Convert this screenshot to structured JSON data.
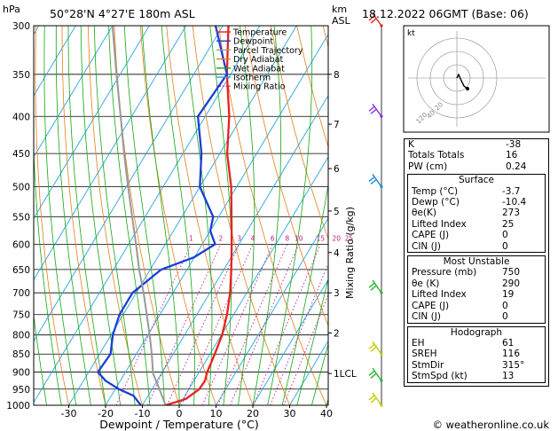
{
  "header": {
    "hpa_label": "hPa",
    "location": "50°28'N 4°27'E 180m ASL",
    "km_label": "km",
    "asl_label": "ASL",
    "datetime": "18.12.2022 06GMT (Base: 06)"
  },
  "chart_data": {
    "type": "skew-t",
    "xlabel": "Dewpoint / Temperature (°C)",
    "ylabel": "Mixing Ratio (g/kg)",
    "xlim": [
      -40,
      40
    ],
    "pressure_range": [
      1000,
      300
    ],
    "y_scale": "log",
    "x_ticks": [
      -30,
      -20,
      -10,
      0,
      10,
      20,
      30,
      40
    ],
    "pressure_ticks": [
      300,
      350,
      400,
      450,
      500,
      550,
      600,
      650,
      700,
      750,
      800,
      850,
      900,
      950,
      1000
    ],
    "height_ticks": [
      {
        "label": "8",
        "p": 350
      },
      {
        "label": "7",
        "p": 410
      },
      {
        "label": "6",
        "p": 472
      },
      {
        "label": "5",
        "p": 540
      },
      {
        "label": "4",
        "p": 616
      },
      {
        "label": "3",
        "p": 700
      },
      {
        "label": "2",
        "p": 795
      },
      {
        "label": "1LCL",
        "p": 904
      }
    ],
    "mixing_ratio_labels": [
      "1",
      "2",
      "3",
      "4",
      "6",
      "8",
      "10",
      "15",
      "20",
      "25"
    ],
    "legend_placement": "top-right",
    "legend": [
      {
        "label": "Temperature",
        "color": "#e8221e",
        "style": "solid"
      },
      {
        "label": "Dewpoint",
        "color": "#1a3fd6",
        "style": "solid"
      },
      {
        "label": "Parcel Trajectory",
        "color": "#999999",
        "style": "solid"
      },
      {
        "label": "Dry Adiabat",
        "color": "#e0801a",
        "style": "solid"
      },
      {
        "label": "Wet Adiabat",
        "color": "#12a612",
        "style": "solid"
      },
      {
        "label": "Isotherm",
        "color": "#22a6e0",
        "style": "solid"
      },
      {
        "label": "Mixing Ratio",
        "color": "#c0188e",
        "style": "dotted"
      }
    ],
    "series": [
      {
        "name": "Temperature",
        "color": "#e8221e",
        "points": [
          [
            1000,
            -3.7
          ],
          [
            980,
            0.8
          ],
          [
            950,
            2.8
          ],
          [
            925,
            3.0
          ],
          [
            900,
            2.2
          ],
          [
            850,
            1.3
          ],
          [
            800,
            0.2
          ],
          [
            750,
            -1.8
          ],
          [
            700,
            -4.5
          ],
          [
            650,
            -8.0
          ],
          [
            600,
            -12.0
          ],
          [
            550,
            -16.5
          ],
          [
            500,
            -21.5
          ],
          [
            450,
            -28.0
          ],
          [
            400,
            -33.5
          ],
          [
            350,
            -41.0
          ],
          [
            300,
            -48.5
          ]
        ]
      },
      {
        "name": "Dewpoint",
        "color": "#1a3fd6",
        "points": [
          [
            1000,
            -10.4
          ],
          [
            970,
            -14
          ],
          [
            950,
            -19
          ],
          [
            925,
            -24
          ],
          [
            900,
            -27.5
          ],
          [
            850,
            -27
          ],
          [
            800,
            -29.5
          ],
          [
            750,
            -31
          ],
          [
            700,
            -31
          ],
          [
            650,
            -27
          ],
          [
            625,
            -20
          ],
          [
            600,
            -16.5
          ],
          [
            575,
            -20
          ],
          [
            550,
            -21.5
          ],
          [
            500,
            -30
          ],
          [
            450,
            -35
          ],
          [
            400,
            -42
          ],
          [
            350,
            -41
          ],
          [
            300,
            -52
          ]
        ]
      },
      {
        "name": "Parcel Trajectory",
        "color": "#999999",
        "points": [
          [
            1000,
            -3.7
          ],
          [
            950,
            -8.0
          ],
          [
            904,
            -12.3
          ],
          [
            850,
            -15.8
          ],
          [
            800,
            -19.5
          ],
          [
            750,
            -23.6
          ],
          [
            700,
            -28.0
          ],
          [
            650,
            -33.0
          ],
          [
            600,
            -38.0
          ],
          [
            550,
            -43.5
          ],
          [
            500,
            -49.5
          ],
          [
            450,
            -56.0
          ],
          [
            400,
            -63.0
          ],
          [
            350,
            -71.0
          ],
          [
            300,
            -80.0
          ]
        ]
      }
    ],
    "wind_barbs": [
      {
        "p": 300,
        "color": "#e02020"
      },
      {
        "p": 400,
        "color": "#8a2be2"
      },
      {
        "p": 500,
        "color": "#1a8fd6"
      },
      {
        "p": 700,
        "color": "#2eb82e"
      },
      {
        "p": 850,
        "color": "#c8c800"
      },
      {
        "p": 925,
        "color": "#2eb82e"
      },
      {
        "p": 1000,
        "color": "#c8c800"
      }
    ]
  },
  "hodograph": {
    "unit_label": "kt",
    "ring_labels": [
      "20",
      "40"
    ],
    "label_120": "120"
  },
  "indices": {
    "rows": [
      {
        "label": "K",
        "value": "-38"
      },
      {
        "label": "Totals Totals",
        "value": "16"
      },
      {
        "label": "PW (cm)",
        "value": "0.24"
      }
    ]
  },
  "surface": {
    "title": "Surface",
    "rows": [
      {
        "label": "Temp (°C)",
        "value": "-3.7"
      },
      {
        "label": "Dewp (°C)",
        "value": "-10.4"
      },
      {
        "label": "θe(K)",
        "value": "273"
      },
      {
        "label": "Lifted Index",
        "value": "25"
      },
      {
        "label": "CAPE (J)",
        "value": "0"
      },
      {
        "label": "CIN (J)",
        "value": "0"
      }
    ]
  },
  "most_unstable": {
    "title": "Most Unstable",
    "rows": [
      {
        "label": "Pressure (mb)",
        "value": "750"
      },
      {
        "label": "θe (K)",
        "value": "290"
      },
      {
        "label": "Lifted Index",
        "value": "19"
      },
      {
        "label": "CAPE (J)",
        "value": "0"
      },
      {
        "label": "CIN (J)",
        "value": "0"
      }
    ]
  },
  "hodograph_box": {
    "title": "Hodograph",
    "rows": [
      {
        "label": "EH",
        "value": "61"
      },
      {
        "label": "SREH",
        "value": "116"
      },
      {
        "label": "StmDir",
        "value": "315°"
      },
      {
        "label": "StmSpd (kt)",
        "value": "13"
      }
    ]
  },
  "footer": {
    "credit": "© weatheronline.co.uk"
  }
}
